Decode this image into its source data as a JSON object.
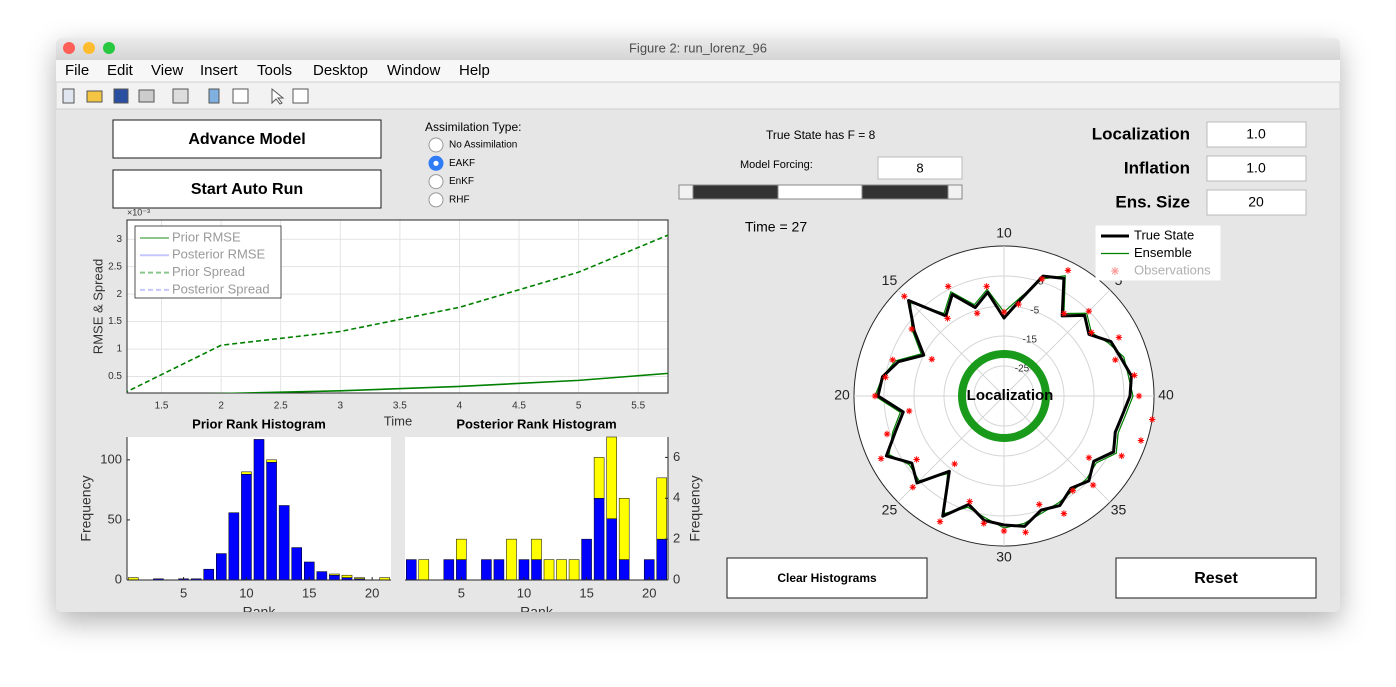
{
  "window": {
    "title": "Figure 2: run_lorenz_96",
    "menu": [
      "File",
      "Edit",
      "View",
      "Insert",
      "Tools",
      "Desktop",
      "Window",
      "Help"
    ]
  },
  "controls": {
    "advance": "Advance Model",
    "auto_run": "Start Auto Run",
    "assimilation": {
      "label": "Assimilation Type:",
      "options": [
        "No Assimilation",
        "EAKF",
        "EnKF",
        "RHF"
      ],
      "selected": 1
    },
    "true_state": "True State has F = 8",
    "forcing": {
      "label": "Model Forcing:",
      "value": "8"
    },
    "time": "Time = 27",
    "localization": {
      "label": "Localization",
      "value": "1.0"
    },
    "inflation": {
      "label": "Inflation",
      "value": "1.0"
    },
    "ens_size": {
      "label": "Ens. Size",
      "value": "20"
    },
    "clear": "Clear Histograms",
    "reset": "Reset"
  },
  "chart_data": [
    {
      "type": "line",
      "xlabel": "Time",
      "ylabel": "RMSE & Spread",
      "y_exponent": "×10⁻³",
      "x": [
        1,
        2,
        3,
        4,
        5,
        6
      ],
      "series": [
        {
          "name": "Prior RMSE",
          "color": "#008000",
          "dash": "solid",
          "values": [
            0.15,
            0.19,
            0.24,
            0.32,
            0.43,
            0.6
          ]
        },
        {
          "name": "Posterior RMSE",
          "color": "#8080ff",
          "dash": "solid",
          "values": [
            null,
            null,
            null,
            null,
            null,
            null
          ]
        },
        {
          "name": "Prior Spread",
          "color": "#008000",
          "dash": "dashed",
          "values": [
            0.0,
            1.07,
            1.32,
            1.76,
            2.4,
            3.3
          ]
        },
        {
          "name": "Posterior Spread",
          "color": "#8080ff",
          "dash": "dashed",
          "values": [
            null,
            null,
            null,
            null,
            null,
            null
          ]
        }
      ],
      "xlim": [
        1.21,
        5.75
      ],
      "ylim": [
        0.2,
        3.35
      ],
      "xticks": [
        1.5,
        2,
        2.5,
        3,
        3.5,
        4,
        4.5,
        5,
        5.5
      ],
      "yticks": [
        0.5,
        1,
        1.5,
        2,
        2.5,
        3
      ],
      "grid": true,
      "legend": "upper left"
    },
    {
      "type": "bar",
      "title": "Prior Rank Histogram",
      "xlabel": "Rank",
      "ylabel": "Frequency",
      "stacked": true,
      "y_axis_side": "left",
      "categories": [
        1,
        2,
        3,
        4,
        5,
        6,
        7,
        8,
        9,
        10,
        11,
        12,
        13,
        14,
        15,
        16,
        17,
        18,
        19,
        20,
        21
      ],
      "series": [
        {
          "color": "#0000ff",
          "values": [
            0,
            0,
            1,
            0,
            1,
            1,
            9,
            22,
            56,
            88,
            117,
            98,
            62,
            27,
            15,
            7,
            4,
            2,
            1,
            0,
            0
          ]
        },
        {
          "color": "#ffff00",
          "values": [
            2,
            0,
            0,
            0,
            0,
            0,
            0,
            0,
            0,
            2,
            0,
            2,
            0,
            0,
            0,
            0,
            1,
            2,
            1,
            0,
            2
          ]
        }
      ],
      "xlim": [
        0.5,
        21.5
      ],
      "ylim": [
        0,
        119
      ],
      "xticks": [
        5,
        10,
        15,
        20
      ],
      "yticks": [
        0,
        50,
        100
      ]
    },
    {
      "type": "bar",
      "title": "Posterior Rank Histogram",
      "xlabel": "Rank",
      "ylabel": "Frequency",
      "stacked": true,
      "y_axis_side": "right",
      "categories": [
        1,
        2,
        3,
        4,
        5,
        6,
        7,
        8,
        9,
        10,
        11,
        12,
        13,
        14,
        15,
        16,
        17,
        18,
        19,
        20,
        21
      ],
      "series": [
        {
          "color": "#0000ff",
          "values": [
            1,
            0,
            0,
            1,
            1,
            0,
            1,
            1,
            0,
            1,
            1,
            0,
            0,
            0,
            2,
            4,
            3,
            1,
            0,
            1,
            2
          ]
        },
        {
          "color": "#ffff00",
          "values": [
            0,
            1,
            0,
            0,
            1,
            0,
            0,
            0,
            2,
            0,
            1,
            1,
            1,
            1,
            0,
            2,
            4,
            3,
            0,
            0,
            3
          ]
        }
      ],
      "xlim": [
        0.5,
        21.5
      ],
      "ylim": [
        0,
        7
      ],
      "xticks": [
        5,
        10,
        15,
        20
      ],
      "yticks": [
        0,
        2,
        4,
        6
      ]
    },
    {
      "type": "polar",
      "annotation": "Localization",
      "closed": true,
      "x": [
        1,
        2,
        3,
        4,
        5,
        6,
        7,
        8,
        9,
        10,
        11,
        12,
        13,
        14,
        15,
        16,
        17,
        18,
        19,
        20,
        21,
        22,
        23,
        24,
        25,
        26,
        27,
        28,
        29,
        30,
        31,
        32,
        33,
        34,
        35,
        36,
        37,
        38,
        39,
        40
      ],
      "series": [
        {
          "name": "True State",
          "color": "#000000",
          "marker": "line",
          "values": [
            8,
            6,
            5,
            0,
            3,
            -2,
            9,
            7,
            -3,
            -9,
            0,
            -4,
            3,
            -2,
            10,
            2,
            -5,
            2,
            6,
            7,
            -1,
            3,
            9,
            3,
            6,
            -4,
            10,
            3,
            7,
            8,
            9,
            5,
            6,
            3,
            5,
            2,
            6,
            4,
            5,
            7
          ]
        },
        {
          "name": "Ensemble",
          "color": "#008000",
          "marker": "line",
          "values": [
            7,
            7,
            4,
            1,
            4,
            -1,
            10,
            6,
            -2,
            -7,
            1,
            -3,
            4,
            -1,
            9,
            3,
            -4,
            3,
            6,
            8,
            0,
            4,
            8,
            4,
            5,
            -3,
            9,
            4,
            6,
            9,
            8,
            6,
            5,
            4,
            4,
            3,
            7,
            5,
            6,
            8
          ]
        },
        {
          "name": "Observations",
          "color": "#ff0000",
          "marker": "star",
          "values": [
            9,
            4,
            8,
            1,
            5,
            -1,
            12,
            6,
            -4,
            -7,
            2,
            -6,
            6,
            -3,
            12,
            3,
            -8,
            4,
            5,
            8,
            -3,
            6,
            11,
            1,
            8,
            -7,
            12,
            2,
            8,
            10,
            11,
            3,
            9,
            4,
            7,
            0,
            9,
            13,
            15,
            10
          ]
        }
      ],
      "thetalim": [
        0,
        40
      ],
      "thetaticks": [
        5,
        10,
        15,
        20,
        25,
        30,
        35,
        40
      ],
      "rlim": [
        -35,
        15
      ],
      "rticks": [
        -25,
        -15,
        -5,
        5
      ]
    }
  ]
}
